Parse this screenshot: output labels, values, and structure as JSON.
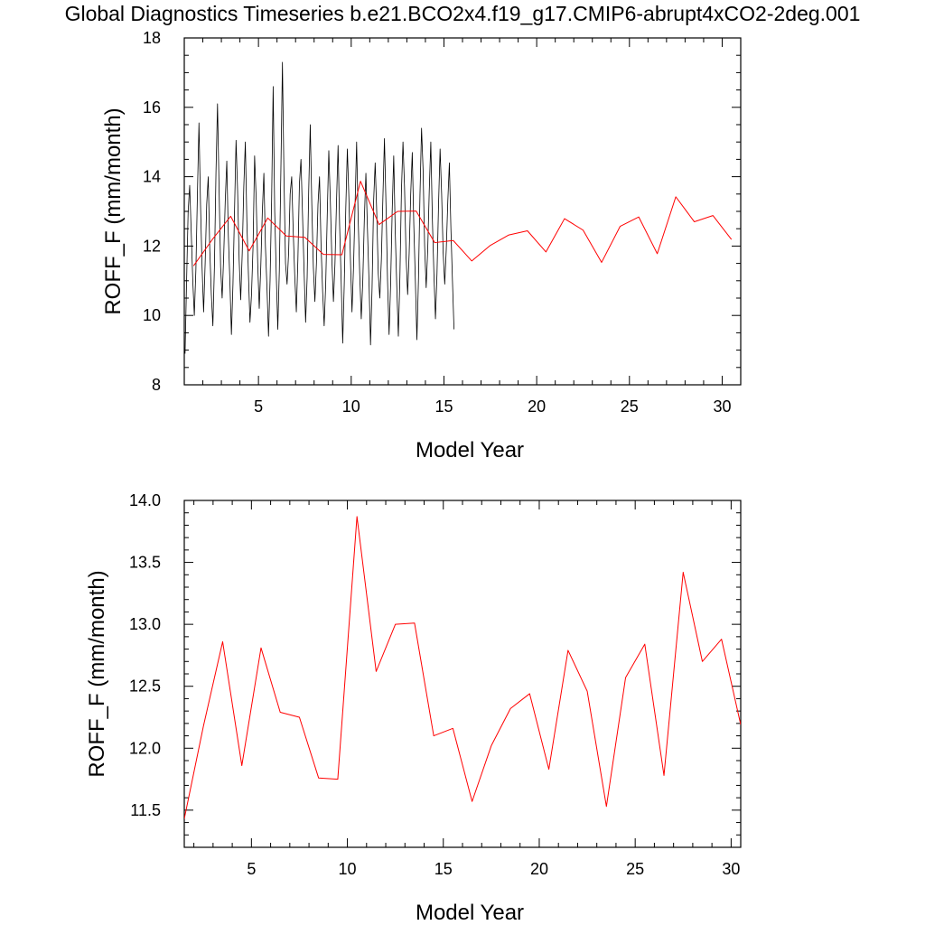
{
  "title": "Global Diagnostics Timeseries b.e21.BCO2x4.f19_g17.CMIP6-abrupt4xCO2-2deg.001",
  "chart_data": [
    {
      "type": "line",
      "title": "",
      "xlabel": "Model Year",
      "ylabel": "ROFF_F (mm/month)",
      "xlim": [
        1.0,
        31.0
      ],
      "ylim": [
        8,
        18
      ],
      "x_ticks": [
        5,
        10,
        15,
        20,
        25,
        30
      ],
      "y_ticks": [
        8,
        10,
        12,
        14,
        16,
        18
      ],
      "grid": false,
      "legend": "none",
      "series": [
        {
          "color": "#000000",
          "x_start": 1.0417,
          "x_step": 0.0833333,
          "values": [
            8.9,
            11.0,
            13.0,
            13.75,
            12.4,
            11.0,
            10.0,
            11.3,
            13.5,
            15.55,
            13.2,
            11.4,
            10.1,
            11.5,
            13.2,
            14.0,
            11.9,
            10.6,
            9.7,
            11.4,
            14.1,
            16.1,
            13.7,
            11.4,
            10.5,
            11.7,
            13.3,
            14.45,
            12.3,
            11.0,
            9.45,
            10.9,
            13.0,
            15.05,
            13.6,
            11.6,
            10.45,
            11.8,
            13.7,
            15.0,
            12.7,
            11.2,
            9.8,
            10.6,
            12.0,
            14.6,
            13.4,
            11.5,
            10.2,
            11.4,
            13.0,
            14.1,
            12.0,
            10.8,
            9.4,
            11.0,
            13.3,
            16.6,
            13.0,
            11.2,
            9.6,
            11.3,
            14.2,
            17.3,
            14.0,
            11.5,
            10.9,
            11.8,
            13.5,
            14.0,
            12.4,
            11.1,
            10.1,
            11.6,
            13.8,
            14.5,
            12.9,
            11.3,
            9.8,
            11.1,
            13.6,
            15.5,
            13.2,
            11.4,
            10.4,
            11.5,
            13.2,
            14.0,
            12.0,
            10.7,
            9.7,
            10.9,
            12.9,
            14.75,
            13.3,
            11.6,
            10.4,
            11.5,
            13.3,
            14.9,
            12.6,
            11.0,
            9.2,
            10.9,
            13.1,
            14.8,
            13.4,
            11.6,
            10.1,
            11.4,
            13.2,
            15.0,
            12.8,
            11.2,
            9.9,
            11.0,
            12.8,
            14.1,
            12.5,
            11.0,
            9.15,
            10.8,
            13.3,
            14.4,
            13.0,
            11.2,
            10.5,
            11.6,
            13.4,
            15.1,
            13.2,
            11.0,
            9.45,
            10.9,
            13.0,
            14.6,
            12.4,
            10.8,
            9.4,
            11.1,
            13.6,
            15.0,
            13.7,
            11.7,
            10.6,
            11.8,
            13.5,
            14.7,
            12.6,
            11.0,
            9.3,
            11.0,
            13.5,
            15.4,
            14.2,
            12.0,
            10.8,
            11.9,
            13.6,
            15.0,
            12.8,
            11.2,
            9.9,
            11.2,
            13.2,
            14.8,
            13.5,
            11.8,
            10.9,
            11.9,
            13.3,
            14.4,
            12.5,
            11.0,
            9.6
          ]
        },
        {
          "color": "#ff0000",
          "x": [
            1.5,
            2.5,
            3.5,
            4.5,
            5.5,
            6.5,
            7.5,
            8.5,
            9.5,
            10.5,
            11.5,
            12.5,
            13.5,
            14.5,
            15.5,
            16.5,
            17.5,
            18.5,
            19.5,
            20.5,
            21.5,
            22.5,
            23.5,
            24.5,
            25.5,
            26.5,
            27.5,
            28.5,
            29.5,
            30.5
          ],
          "values": [
            11.43,
            12.18,
            12.86,
            11.86,
            12.81,
            12.29,
            12.25,
            11.76,
            11.75,
            13.87,
            12.62,
            13.0,
            13.01,
            12.1,
            12.16,
            11.57,
            12.02,
            12.32,
            12.44,
            11.83,
            12.79,
            12.46,
            11.53,
            12.57,
            12.84,
            11.78,
            13.42,
            12.7,
            12.88,
            12.19
          ]
        }
      ]
    },
    {
      "type": "line",
      "title": "",
      "xlabel": "Model Year",
      "ylabel": "ROFF_F (mm/month)",
      "xlim": [
        1.5,
        30.5
      ],
      "ylim": [
        11.2,
        14.0
      ],
      "x_ticks": [
        5,
        10,
        15,
        20,
        25,
        30
      ],
      "y_ticks": [
        11.5,
        12.0,
        12.5,
        13.0,
        13.5,
        14.0
      ],
      "grid": false,
      "legend": "none",
      "series": [
        {
          "color": "#ff0000",
          "x": [
            1.5,
            2.5,
            3.5,
            4.5,
            5.5,
            6.5,
            7.5,
            8.5,
            9.5,
            10.5,
            11.5,
            12.5,
            13.5,
            14.5,
            15.5,
            16.5,
            17.5,
            18.5,
            19.5,
            20.5,
            21.5,
            22.5,
            23.5,
            24.5,
            25.5,
            26.5,
            27.5,
            28.5,
            29.5,
            30.5
          ],
          "values": [
            11.43,
            12.18,
            12.86,
            11.86,
            12.81,
            12.29,
            12.25,
            11.76,
            11.75,
            13.87,
            12.62,
            13.0,
            13.01,
            12.1,
            12.16,
            11.57,
            12.02,
            12.32,
            12.44,
            11.83,
            12.79,
            12.46,
            11.53,
            12.57,
            12.84,
            11.78,
            13.42,
            12.7,
            12.88,
            12.19
          ]
        }
      ]
    }
  ]
}
